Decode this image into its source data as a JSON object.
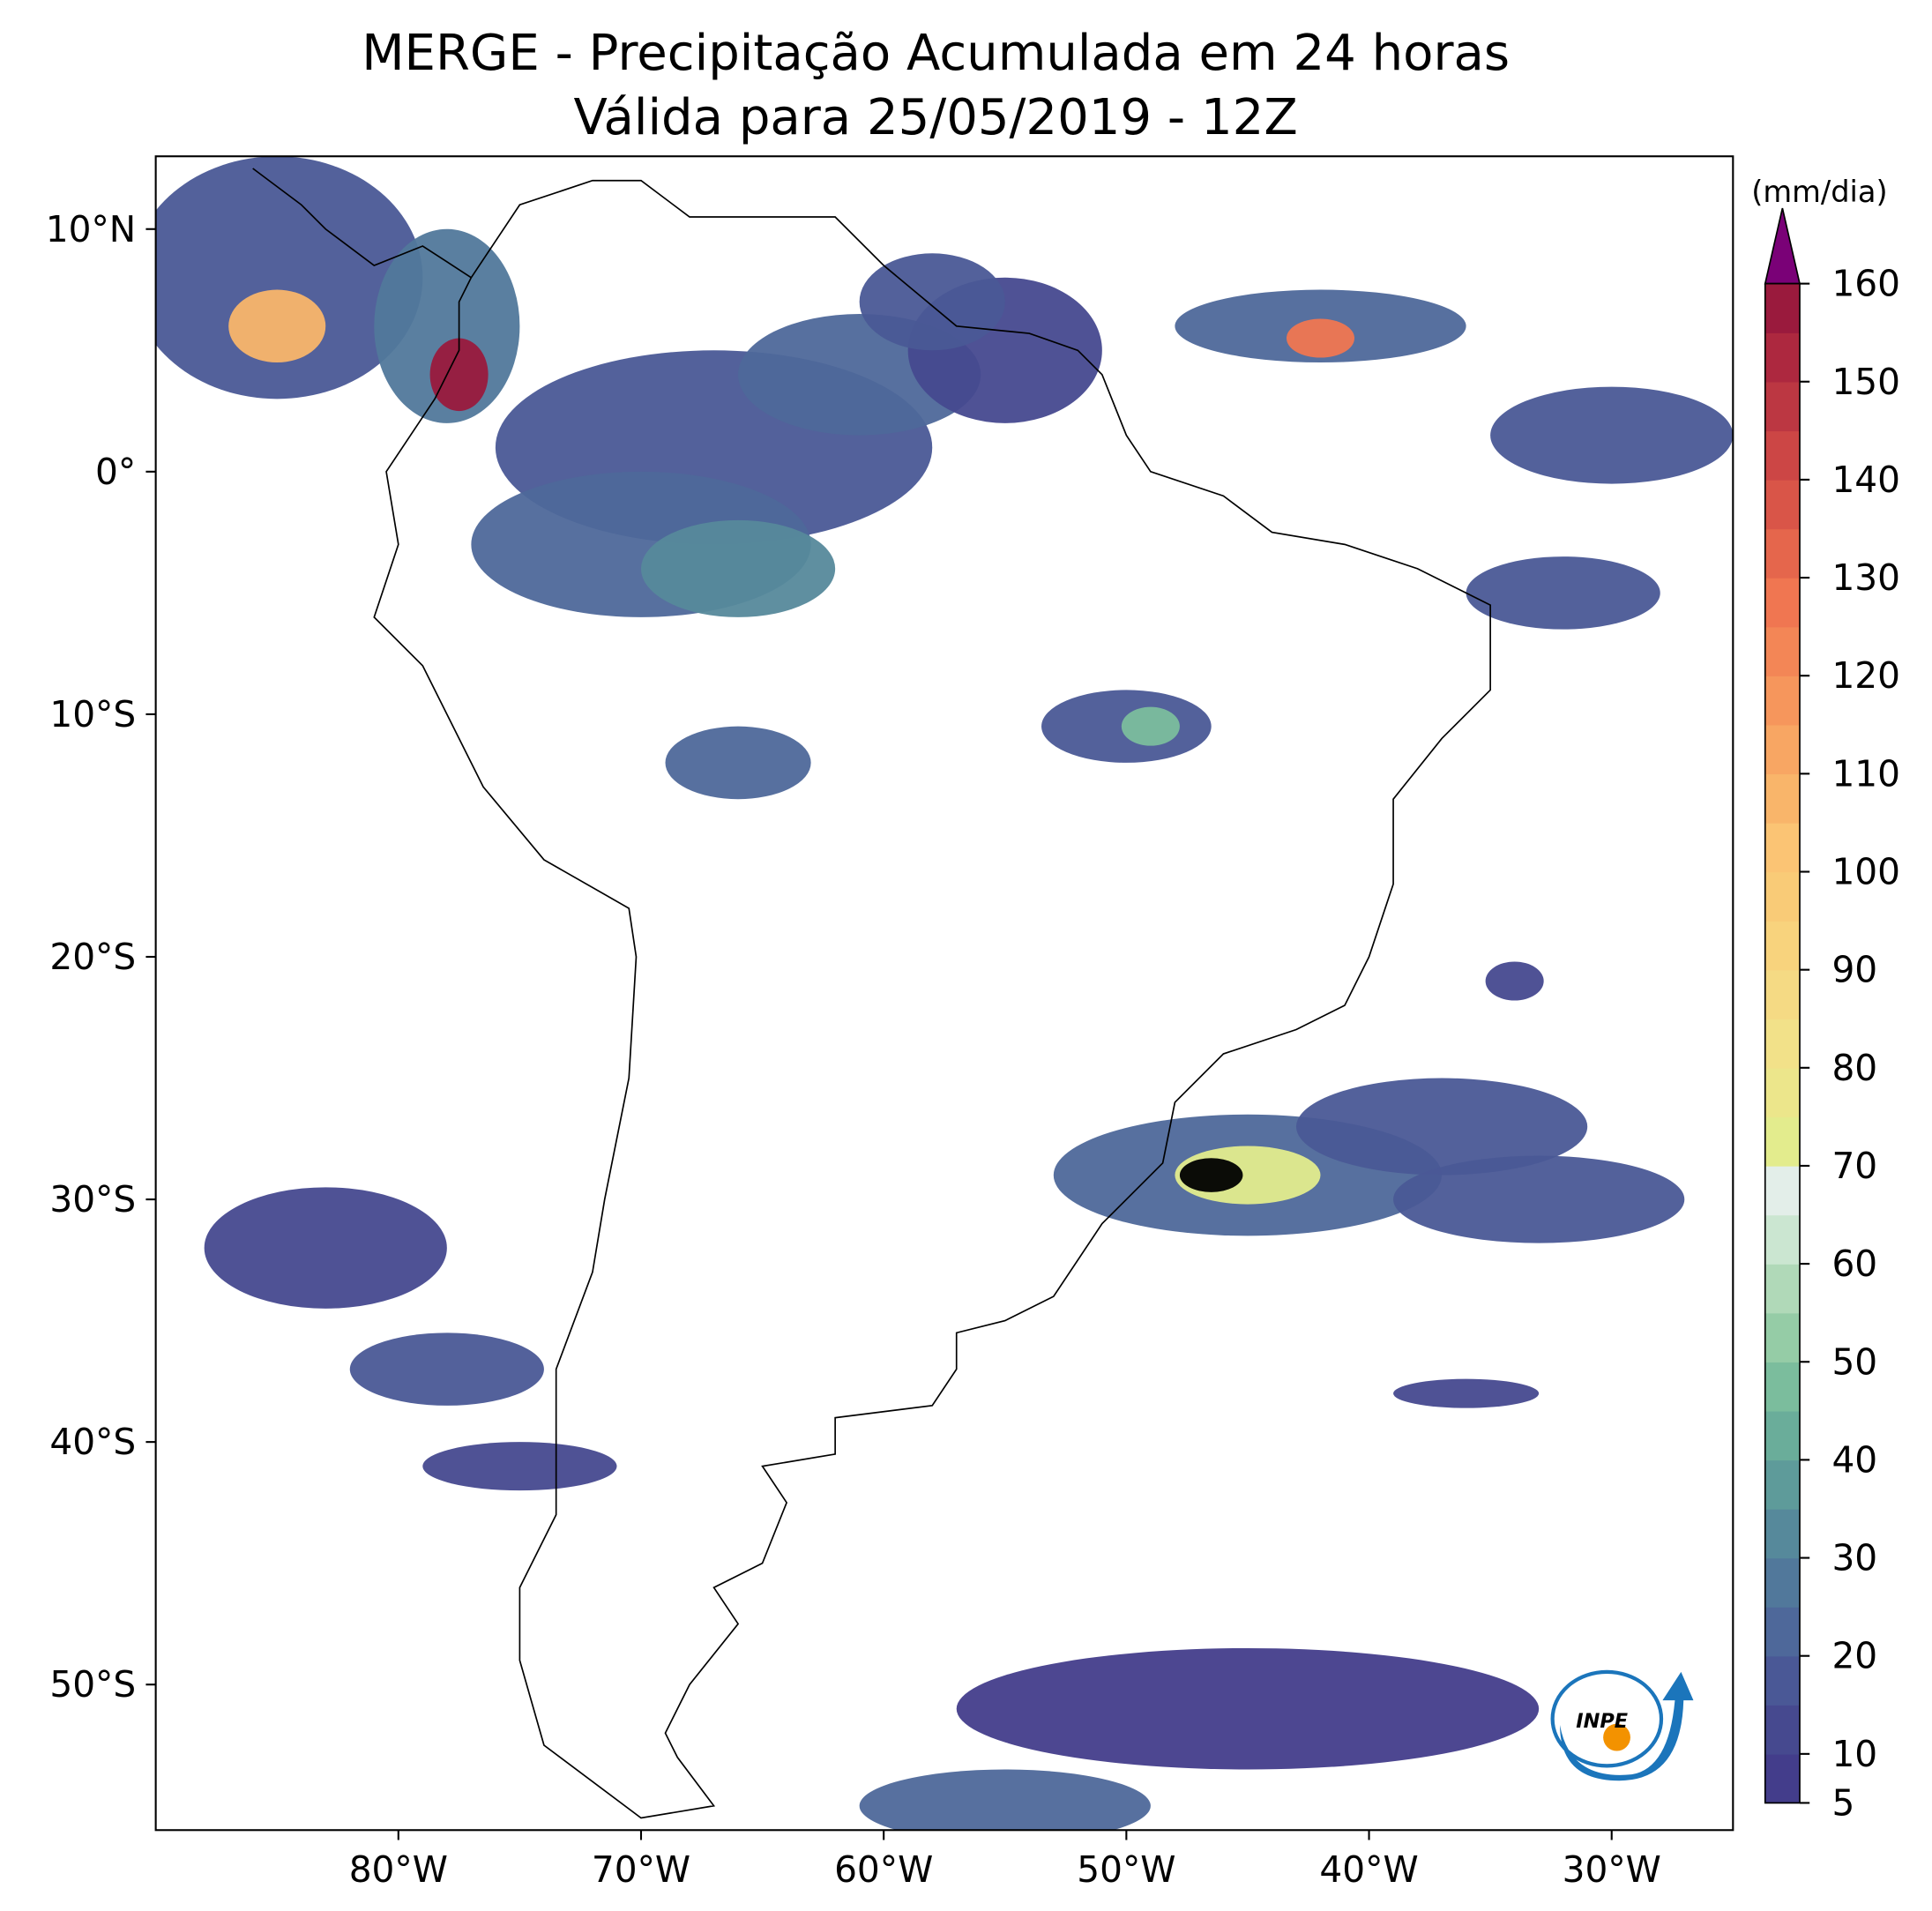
{
  "title": [
    "MERGE - Precipitação Acumulada em 24 horas",
    "Válida para 25/05/2019 - 12Z"
  ],
  "map": {
    "xlim": [
      -90,
      -25
    ],
    "ylim": [
      -56,
      13
    ],
    "xticks": [
      {
        "value": -80,
        "label": "80°W"
      },
      {
        "value": -70,
        "label": "70°W"
      },
      {
        "value": -60,
        "label": "60°W"
      },
      {
        "value": -50,
        "label": "50°W"
      },
      {
        "value": -40,
        "label": "40°W"
      },
      {
        "value": -30,
        "label": "30°W"
      }
    ],
    "yticks": [
      {
        "value": 10,
        "label": "10°N"
      },
      {
        "value": 0,
        "label": "0°"
      },
      {
        "value": -10,
        "label": "10°S"
      },
      {
        "value": -20,
        "label": "20°S"
      },
      {
        "value": -30,
        "label": "30°S"
      },
      {
        "value": -40,
        "label": "40°S"
      },
      {
        "value": -50,
        "label": "50°S"
      }
    ]
  },
  "colorbar": {
    "label": "(mm/dia)",
    "levels": [
      5,
      10,
      15,
      20,
      25,
      30,
      35,
      40,
      45,
      50,
      55,
      60,
      65,
      70,
      75,
      80,
      85,
      90,
      95,
      100,
      105,
      110,
      115,
      120,
      125,
      130,
      135,
      140,
      145,
      150,
      155,
      160
    ],
    "colors": [
      "#433d8b",
      "#46498f",
      "#4a5896",
      "#4e689a",
      "#51789b",
      "#56899b",
      "#5e9b9a",
      "#6aad9a",
      "#7bbd9d",
      "#95cca6",
      "#b0d9b8",
      "#cbe6d1",
      "#e3eee9",
      "#e3ec8d",
      "#ece68b",
      "#f2e189",
      "#f5da84",
      "#f8d37d",
      "#f9cb77",
      "#fbc474",
      "#f9b56a",
      "#f8a663",
      "#f6965c",
      "#f38656",
      "#f07651",
      "#e5664c",
      "#d95548",
      "#cc4645",
      "#bc3742",
      "#ad283f",
      "#9a1a3d"
    ],
    "extend_color": "#7a0177",
    "ticks": [
      5,
      10,
      20,
      30,
      40,
      50,
      60,
      70,
      80,
      90,
      100,
      110,
      120,
      130,
      140,
      150,
      160
    ]
  },
  "logo": "INPE"
}
